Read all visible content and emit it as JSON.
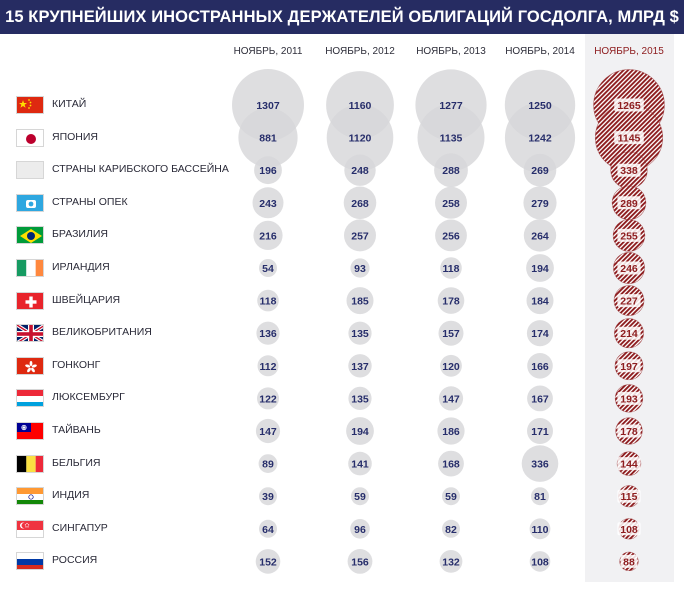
{
  "chart_data": {
    "type": "bubble",
    "title": "15 КРУПНЕЙШИХ ИНОСТРАННЫХ ДЕРЖАТЕЛЕЙ ОБЛИГАЦИЙ ГОСДОЛГА, МЛРД $",
    "columns": [
      "НОЯБРЬ, 2011",
      "НОЯБРЬ, 2012",
      "НОЯБРЬ, 2013",
      "НОЯБРЬ, 2014",
      "НОЯБРЬ, 2015"
    ],
    "highlight_column": "НОЯБРЬ, 2015",
    "colors": {
      "bubble": "#d7d7d9",
      "bubble_text": "#272e6b",
      "highlight": "#8e1e20",
      "title_bg": "#262c62"
    },
    "rows": [
      {
        "name": "КИТАЙ",
        "flag": "china-flag-icon",
        "values": [
          1307,
          1160,
          1277,
          1250,
          1265
        ]
      },
      {
        "name": "ЯПОНИЯ",
        "flag": "japan-flag-icon",
        "values": [
          881,
          1120,
          1135,
          1242,
          1145
        ]
      },
      {
        "name": "СТРАНЫ КАРИБСКОГО БАССЕЙНА",
        "flag": "blank-flag-icon",
        "values": [
          196,
          248,
          288,
          269,
          338
        ]
      },
      {
        "name": "СТРАНЫ ОПЕК",
        "flag": "opec-flag-icon",
        "values": [
          243,
          268,
          258,
          279,
          289
        ]
      },
      {
        "name": "БРАЗИЛИЯ",
        "flag": "brazil-flag-icon",
        "values": [
          216,
          257,
          256,
          264,
          255
        ]
      },
      {
        "name": "ИРЛАНДИЯ",
        "flag": "ireland-flag-icon",
        "values": [
          54,
          93,
          118,
          194,
          246
        ]
      },
      {
        "name": "ШВЕЙЦАРИЯ",
        "flag": "switzerland-flag-icon",
        "values": [
          118,
          185,
          178,
          184,
          227
        ]
      },
      {
        "name": "ВЕЛИКОБРИТАНИЯ",
        "flag": "uk-flag-icon",
        "values": [
          136,
          135,
          157,
          174,
          214
        ]
      },
      {
        "name": "ГОНКОНГ",
        "flag": "hongkong-flag-icon",
        "values": [
          112,
          137,
          120,
          166,
          197
        ]
      },
      {
        "name": "ЛЮКСЕМБУРГ",
        "flag": "luxembourg-flag-icon",
        "values": [
          122,
          135,
          147,
          167,
          193
        ]
      },
      {
        "name": "ТАЙВАНЬ",
        "flag": "taiwan-flag-icon",
        "values": [
          147,
          194,
          186,
          171,
          178
        ]
      },
      {
        "name": "БЕЛЬГИЯ",
        "flag": "belgium-flag-icon",
        "values": [
          89,
          141,
          168,
          336,
          144
        ]
      },
      {
        "name": "ИНДИЯ",
        "flag": "india-flag-icon",
        "values": [
          39,
          59,
          59,
          81,
          115
        ]
      },
      {
        "name": "СИНГАПУР",
        "flag": "singapore-flag-icon",
        "values": [
          64,
          96,
          82,
          110,
          108
        ]
      },
      {
        "name": "РОССИЯ",
        "flag": "russia-flag-icon",
        "values": [
          152,
          156,
          132,
          108,
          88
        ]
      }
    ]
  }
}
